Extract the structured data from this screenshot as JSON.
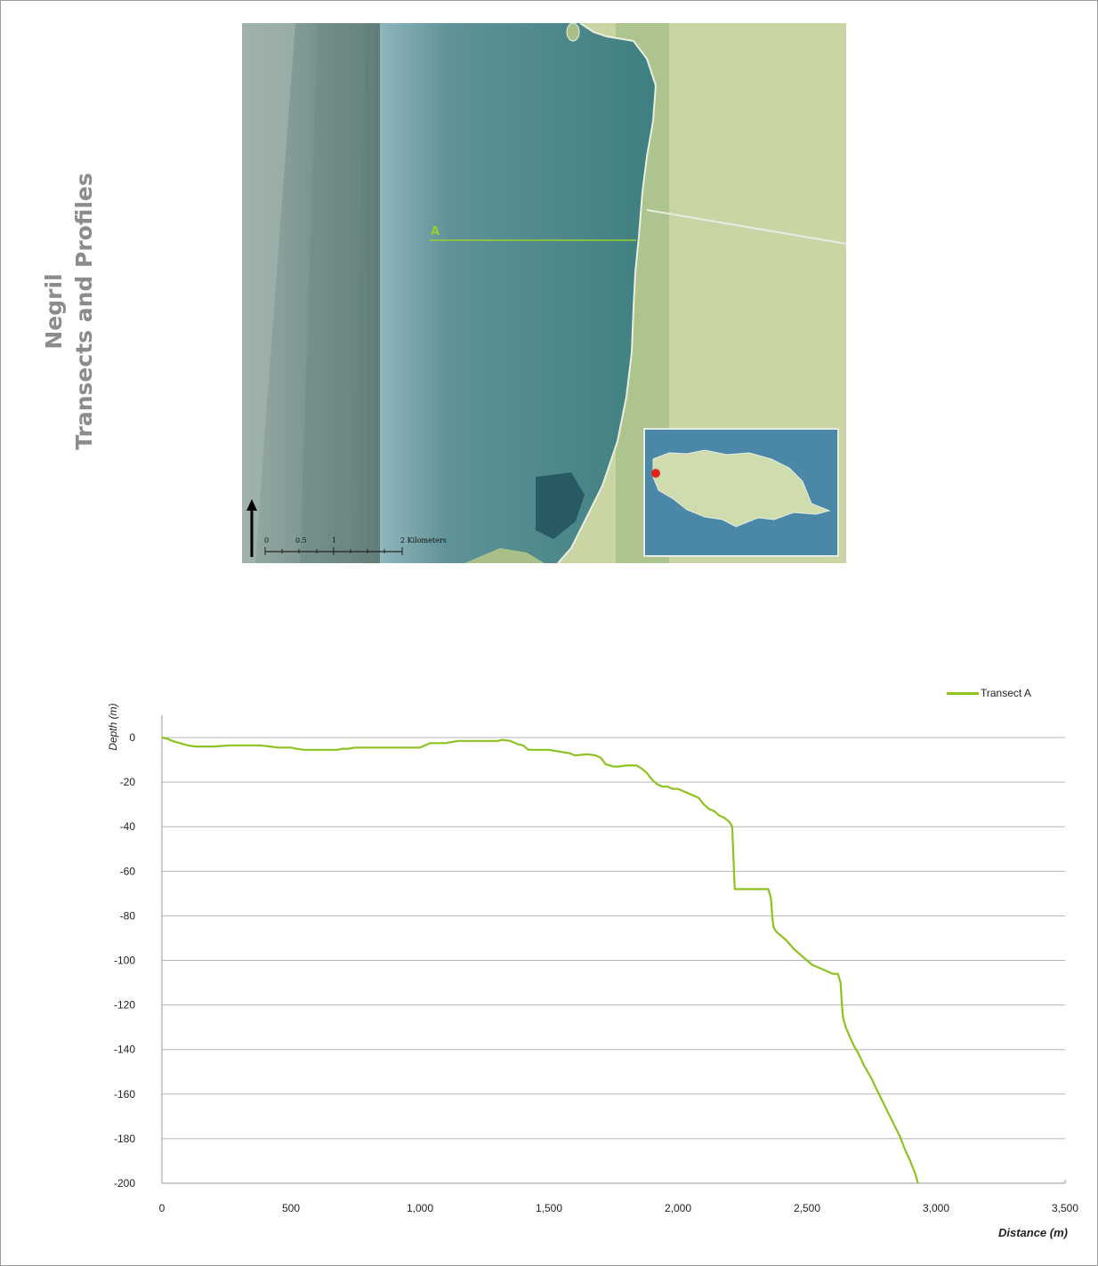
{
  "page": {
    "title_line1": "Negril",
    "title_line2": "Transects and Profiles"
  },
  "map": {
    "transect_label": "A",
    "scale_ticks": [
      "0",
      "0.5",
      "1",
      "2 Kilometers"
    ],
    "colors": {
      "deep_sea": "#8fa4a0",
      "reef": "#4d8a8c",
      "land": "#c5d29f",
      "transect": "#9acd32",
      "inset_sea": "#4b87a6",
      "inset_land": "#cfdcae",
      "marker": "#e2231a"
    },
    "icons": [
      "north-arrow-icon",
      "location-marker-icon"
    ]
  },
  "chart_data": {
    "type": "line",
    "xlabel": "Distance (m)",
    "ylabel": "Depth (m)",
    "xlim": [
      0,
      3500
    ],
    "ylim": [
      -200,
      10
    ],
    "xticks": [
      0,
      500,
      1000,
      1500,
      2000,
      2500,
      3000,
      3500
    ],
    "xtick_labels": [
      "0",
      "500",
      "1,000",
      "1,500",
      "2,000",
      "2,500",
      "3,000",
      "3,500"
    ],
    "yticks": [
      0,
      -20,
      -40,
      -60,
      -80,
      -100,
      -120,
      -140,
      -160,
      -180,
      -200
    ],
    "ytick_labels": [
      "0",
      "-20",
      "-40",
      "-60",
      "-80",
      "-100",
      "-120",
      "-140",
      "-160",
      "-180",
      "-200"
    ],
    "grid": true,
    "legend_position": "top-right",
    "line_color": "#8dc21f",
    "series": [
      {
        "name": "Transect A",
        "x": [
          0,
          20,
          40,
          70,
          100,
          130,
          200,
          270,
          300,
          380,
          420,
          450,
          500,
          520,
          550,
          600,
          650,
          680,
          700,
          720,
          750,
          800,
          900,
          1000,
          1020,
          1040,
          1060,
          1100,
          1120,
          1150,
          1200,
          1250,
          1300,
          1320,
          1350,
          1380,
          1400,
          1420,
          1450,
          1500,
          1550,
          1580,
          1600,
          1650,
          1680,
          1700,
          1720,
          1750,
          1770,
          1800,
          1820,
          1840,
          1860,
          1880,
          1900,
          1920,
          1940,
          1960,
          1980,
          2000,
          2020,
          2040,
          2060,
          2080,
          2100,
          2120,
          2140,
          2160,
          2180,
          2200,
          2210,
          2215,
          2220,
          2225,
          2230,
          2260,
          2300,
          2320,
          2350,
          2360,
          2365,
          2370,
          2380,
          2400,
          2420,
          2450,
          2480,
          2500,
          2520,
          2540,
          2560,
          2580,
          2600,
          2620,
          2630,
          2635,
          2640,
          2650,
          2680,
          2700,
          2720,
          2750,
          2770,
          2800,
          2830,
          2860,
          2880,
          2900,
          2920,
          2930
        ],
        "y": [
          0,
          -0.5,
          -1.5,
          -2.5,
          -3.5,
          -4,
          -4,
          -3.5,
          -3.5,
          -3.5,
          -4,
          -4.5,
          -4.5,
          -5,
          -5.5,
          -5.5,
          -5.5,
          -5.5,
          -5,
          -5,
          -4.5,
          -4.5,
          -4.5,
          -4.5,
          -3.5,
          -2.5,
          -2.5,
          -2.5,
          -2,
          -1.5,
          -1.5,
          -1.5,
          -1.5,
          -1,
          -1.5,
          -3,
          -3.5,
          -5.5,
          -5.5,
          -5.5,
          -6.5,
          -7,
          -8,
          -7.5,
          -8,
          -9,
          -12,
          -13,
          -13,
          -12.5,
          -12.5,
          -12.5,
          -14,
          -16,
          -19,
          -21,
          -22,
          -22,
          -23,
          -23,
          -24,
          -25,
          -26,
          -27,
          -30,
          -32,
          -33,
          -35,
          -36,
          -38,
          -40,
          -55,
          -68,
          -68,
          -68,
          -68,
          -68,
          -68,
          -68,
          -72,
          -80,
          -85,
          -87,
          -89,
          -91,
          -95,
          -98,
          -100,
          -102,
          -103,
          -104,
          -105,
          -106,
          -106,
          -110,
          -120,
          -126,
          -130,
          -138,
          -142,
          -147,
          -153,
          -158,
          -165,
          -172,
          -179,
          -185,
          -190,
          -196,
          -200
        ]
      }
    ]
  }
}
